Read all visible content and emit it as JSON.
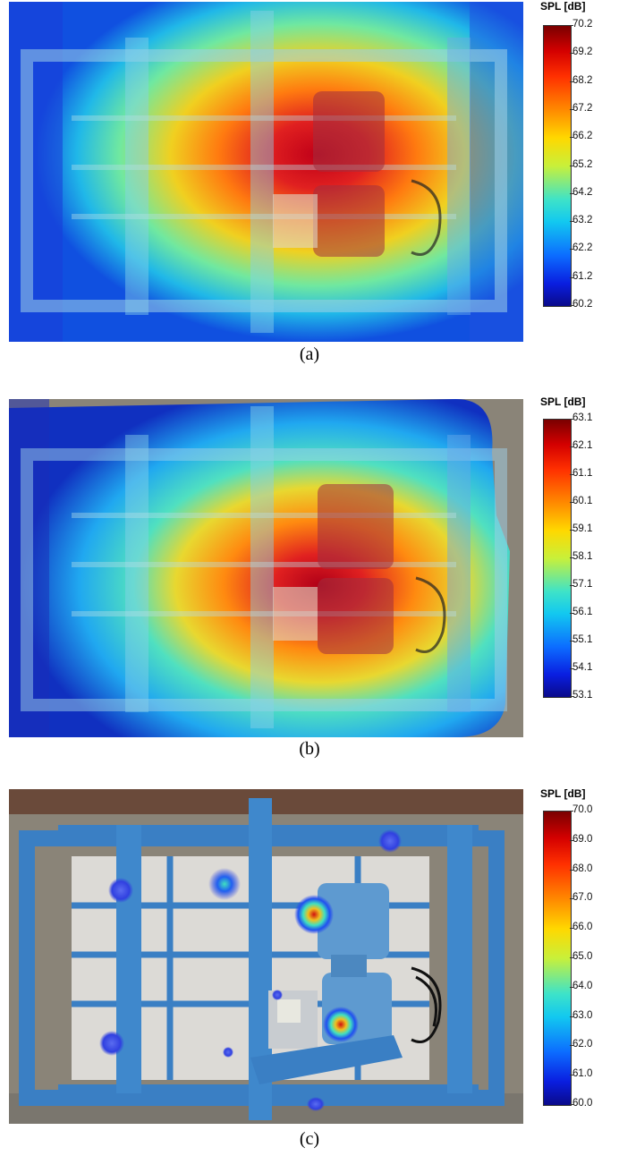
{
  "chart_data": [
    {
      "type": "heatmap",
      "caption": "(a)",
      "colorbar_title": "SPL [dB]",
      "colorbar_ticks": [
        "70.2",
        "69.2",
        "68.2",
        "67.2",
        "66.2",
        "65.2",
        "64.2",
        "63.2",
        "62.2",
        "61.2",
        "60.2"
      ],
      "range": [
        60.2,
        70.2
      ]
    },
    {
      "type": "heatmap",
      "caption": "(b)",
      "colorbar_title": "SPL [dB]",
      "colorbar_ticks": [
        "63.1",
        "62.1",
        "61.1",
        "60.1",
        "59.1",
        "58.1",
        "57.1",
        "56.1",
        "55.1",
        "54.1",
        "53.1"
      ],
      "range": [
        53.1,
        63.1
      ]
    },
    {
      "type": "heatmap",
      "caption": "(c)",
      "colorbar_title": "SPL [dB]",
      "colorbar_ticks": [
        "70.0",
        "69.0",
        "68.0",
        "67.0",
        "66.0",
        "65.0",
        "64.0",
        "63.0",
        "62.0",
        "61.0",
        "60.0"
      ],
      "range": [
        60.0,
        70.0
      ]
    }
  ],
  "colors": {
    "machine_blue": "#3a7fc4",
    "ground": "#8a8478"
  }
}
